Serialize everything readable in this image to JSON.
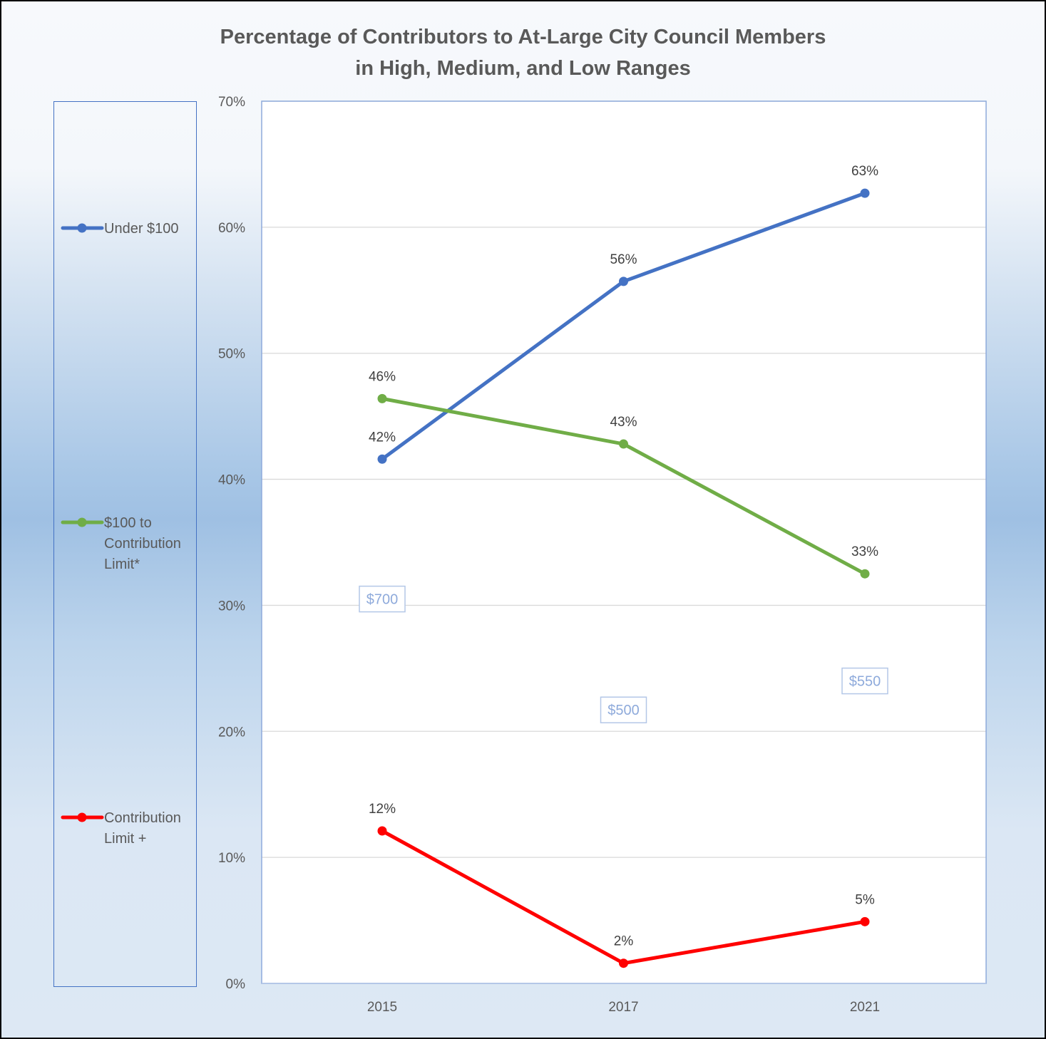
{
  "chart_data": {
    "type": "line",
    "title_lines": [
      "Percentage of Contributors to At-Large City Council Members",
      "in High, Medium, and Low Ranges"
    ],
    "categories": [
      "2015",
      "2017",
      "2021"
    ],
    "ylim": [
      0,
      70
    ],
    "yticks": [
      0,
      10,
      20,
      30,
      40,
      50,
      60,
      70
    ],
    "ytick_labels": [
      "0%",
      "10%",
      "20%",
      "30%",
      "40%",
      "50%",
      "60%",
      "70%"
    ],
    "grid": true,
    "legend_position": "left",
    "series": [
      {
        "name": "Under $100",
        "name_lines": [
          "Under $100"
        ],
        "color": "#4472c4",
        "values": [
          41.6,
          55.7,
          62.7
        ],
        "labels": [
          "42%",
          "56%",
          "63%"
        ]
      },
      {
        "name": "$100 to Contribution Limit*",
        "name_lines": [
          "$100 to",
          "Contribution",
          "Limit*"
        ],
        "color": "#70ad47",
        "values": [
          46.4,
          42.8,
          32.5
        ],
        "labels": [
          "46%",
          "43%",
          "33%"
        ]
      },
      {
        "name": "Contribution Limit +",
        "name_lines": [
          "Contribution",
          "Limit +"
        ],
        "color": "#ff0000",
        "values": [
          12.1,
          1.6,
          4.9
        ],
        "labels": [
          "12%",
          "2%",
          "5%"
        ]
      }
    ],
    "annotations": [
      {
        "category": "2015",
        "text": "$700",
        "y": 30.5
      },
      {
        "category": "2017",
        "text": "$500",
        "y": 21.7
      },
      {
        "category": "2021",
        "text": "$550",
        "y": 24.0
      }
    ]
  }
}
